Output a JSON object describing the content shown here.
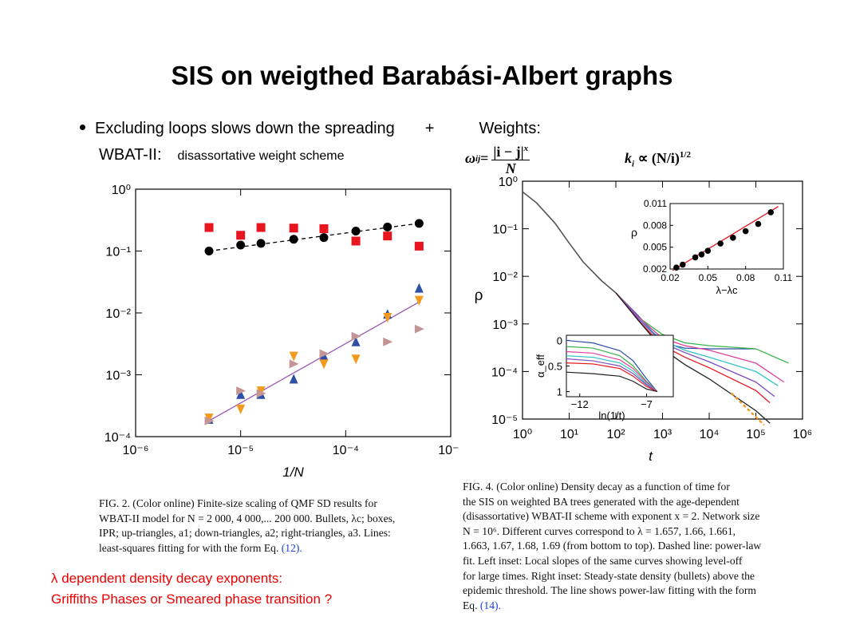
{
  "slide": {
    "title": "SIS on weigthed Barabási-Albert graphs",
    "bullet_part1": "Excluding loops slows down the spreading",
    "bullet_plus": "+",
    "bullet_weights": "Weights:",
    "wbat_label": "WBAT-II:",
    "wbat_desc": "disassortative weight scheme",
    "formula_lhs": "ω",
    "formula_lhs_sub": "ij",
    "formula_eq": " = ",
    "formula_num": "|i − j|",
    "formula_num_sup": "x",
    "formula_den": "N",
    "formula2_lhs": "k",
    "formula2_sub": "i",
    "formula2_rest": " ∝ (N/i)",
    "formula2_sup": "1/2",
    "remark_line1": "λ dependent density  decay exponents:",
    "remark_line2": "Griffiths Phases  or Smeared phase transition ?"
  },
  "fig2": {
    "caption_lines": [
      "FIG. 2.  (Color online) Finite-size scaling of QMF SD results for",
      "WBAT-II model for N = 2 000, 4 000,... 200 000. Bullets, λc; boxes,",
      "IPR; up-triangles, a1; down-triangles, a2; right-triangles, a3. Lines:",
      "least-squares fitting for with the form Eq."
    ],
    "caption_ref": "(12)."
  },
  "fig4": {
    "caption_lines": [
      "FIG. 4.  (Color online) Density decay as a function of time for",
      "the SIS on weighted BA trees generated with the age-dependent",
      "(disassortative) WBAT-II scheme with exponent x = 2. Network size",
      "N = 10⁶. Different curves correspond to λ = 1.657, 1.66, 1.661,",
      "1.663, 1.67, 1.68, 1.69 (from bottom to top). Dashed line: power-law",
      "fit. Left inset: Local slopes of the same curves showing level-off",
      "for large times. Right inset: Steady-state density (bullets) above the",
      "epidemic threshold. The line shows power-law fitting with the form",
      "Eq."
    ],
    "caption_ref": "(14)."
  },
  "colors": {
    "red": "#e8141e",
    "black": "#000000",
    "blue": "#2e4fa8",
    "orange": "#f39a1c",
    "pink": "#c49595",
    "purple": "#9b59b6",
    "green": "#3cb34a",
    "magenta": "#e0409a",
    "cyan": "#34c1c8",
    "violet": "#7a4fc0",
    "link": "#1a3fd8",
    "remark": "#ee0000"
  },
  "chart_data": [
    {
      "type": "scatter",
      "xlabel": "1/N",
      "ylabel": "",
      "log_x": true,
      "log_y": true,
      "xlim": [
        1e-06,
        0.001
      ],
      "ylim": [
        0.0001,
        1
      ],
      "x_ticks": [
        "10⁻⁶",
        "10⁻⁵",
        "10⁻⁴",
        "10⁻³"
      ],
      "y_ticks": [
        "10⁰",
        "10⁻¹",
        "10⁻²",
        "10⁻³",
        "10⁻⁴"
      ],
      "x_ticks_v": [
        1e-06,
        1e-05,
        0.0001,
        0.001
      ],
      "y_ticks_v": [
        1,
        0.1,
        0.01,
        0.001,
        0.0001
      ],
      "x": [
        5e-06,
        1e-05,
        1.56e-05,
        3.2e-05,
        6.2e-05,
        0.000125,
        0.00025,
        0.0005
      ],
      "series": [
        {
          "marker": "bullet",
          "color": "#000000",
          "values": [
            0.1,
            0.125,
            0.133,
            0.155,
            0.165,
            0.21,
            0.245,
            0.28
          ]
        },
        {
          "marker": "box",
          "color": "#e8141e",
          "values": [
            0.24,
            0.18,
            0.24,
            0.235,
            0.23,
            0.145,
            0.175,
            0.12
          ]
        },
        {
          "marker": "up-triangle",
          "color": "#2e4fa8",
          "values": [
            0.00019,
            0.00048,
            0.00048,
            0.00085,
            0.002,
            0.0034,
            0.0095,
            0.025
          ]
        },
        {
          "marker": "down-triangle",
          "color": "#f39a1c",
          "values": [
            0.0002,
            0.00028,
            0.00055,
            0.002,
            0.0015,
            0.0018,
            0.0085,
            0.016
          ]
        },
        {
          "marker": "right-triangle",
          "color": "#c49595",
          "values": [
            0.00018,
            0.00055,
            0.0005,
            0.0015,
            0.0022,
            0.0042,
            0.0034,
            0.0055
          ]
        }
      ],
      "fit_lines": [
        {
          "color": "#000000",
          "dashed": true,
          "from": [
            5e-06,
            0.1
          ],
          "to": [
            0.0005,
            0.28
          ]
        },
        {
          "color": "#9b59b6",
          "dashed": false,
          "from": [
            5e-06,
            0.00018
          ],
          "to": [
            0.0005,
            0.015
          ]
        }
      ]
    },
    {
      "type": "line",
      "xlabel": "t",
      "ylabel": "ρ",
      "log_x": true,
      "log_y": true,
      "xlim": [
        1,
        1000000
      ],
      "ylim": [
        1e-05,
        1
      ],
      "x_ticks": [
        "10⁰",
        "10¹",
        "10²",
        "10³",
        "10⁴",
        "10⁵",
        "10⁶"
      ],
      "y_ticks": [
        "10⁰",
        "10⁻¹",
        "10⁻²",
        "10⁻³",
        "10⁻⁴",
        "10⁻⁵"
      ],
      "x_ticks_v": [
        1,
        10,
        100,
        1000,
        10000,
        100000,
        1000000
      ],
      "y_ticks_v": [
        1,
        0.1,
        0.01,
        0.001,
        0.0001,
        1e-05
      ],
      "shared_head": {
        "x": [
          1,
          2,
          5,
          10,
          20,
          50,
          100
        ],
        "y": [
          0.6,
          0.35,
          0.13,
          0.05,
          0.02,
          0.008,
          0.0045
        ]
      },
      "series": [
        {
          "lambda": "1.69",
          "color": "#2e4fa8",
          "x": [
            100,
            300,
            1000,
            3000,
            10000,
            100000
          ],
          "y": [
            0.0045,
            0.0015,
            0.0004,
            0.00031,
            0.0003,
            0.0003
          ]
        },
        {
          "lambda": "1.68",
          "color": "#3cb34a",
          "x": [
            100,
            300,
            1000,
            3000,
            10000,
            100000,
            500000
          ],
          "y": [
            0.0045,
            0.0014,
            0.0006,
            0.0004,
            0.00035,
            0.0003,
            0.00015
          ]
        },
        {
          "lambda": "1.67",
          "color": "#e0409a",
          "x": [
            100,
            300,
            1000,
            3000,
            10000,
            100000,
            400000
          ],
          "y": [
            0.0045,
            0.0014,
            0.0005,
            0.00035,
            0.00028,
            0.00015,
            6e-05
          ]
        },
        {
          "lambda": "1.663",
          "color": "#34c1c8",
          "x": [
            100,
            300,
            1000,
            3000,
            10000,
            100000,
            300000
          ],
          "y": [
            0.0045,
            0.0013,
            0.00045,
            0.00028,
            0.0002,
            0.0001,
            5e-05
          ]
        },
        {
          "lambda": "1.661",
          "color": "#7a4fc0",
          "x": [
            100,
            300,
            1000,
            3000,
            10000,
            100000,
            250000
          ],
          "y": [
            0.0045,
            0.0013,
            0.0004,
            0.00025,
            0.00016,
            6e-05,
            3e-05
          ]
        },
        {
          "lambda": "1.66",
          "color": "#e8141e",
          "x": [
            100,
            300,
            1000,
            3000,
            10000,
            100000,
            200000
          ],
          "y": [
            0.0045,
            0.0012,
            0.00035,
            0.0002,
            0.00012,
            4e-05,
            2.2e-05
          ]
        },
        {
          "lambda": "1.657",
          "color": "#222222",
          "x": [
            100,
            300,
            1000,
            3000,
            10000,
            100000,
            200000
          ],
          "y": [
            0.0045,
            0.0012,
            0.0003,
            0.00014,
            7e-05,
            1.5e-05,
            8.2e-06
          ]
        }
      ],
      "dashed_fit": {
        "color": "#f39a1c",
        "x": [
          30000,
          150000
        ],
        "y": [
          3.5e-05,
          7.5e-06
        ]
      },
      "insets": [
        {
          "name": "right-inset",
          "xlabel": "λ−λc",
          "ylabel": "ρ",
          "x_ticks": [
            "0.02",
            "0.05",
            "0.08",
            "0.11"
          ],
          "y_ticks": [
            "0.011",
            "0.008",
            "0.005",
            "0.002"
          ],
          "xlim": [
            0.02,
            0.11
          ],
          "ylim": [
            0.002,
            0.011
          ],
          "x_ticks_v": [
            0.02,
            0.05,
            0.08,
            0.11
          ],
          "y_ticks_v": [
            0.011,
            0.008,
            0.005,
            0.002
          ],
          "points": {
            "x": [
              0.025,
              0.03,
              0.04,
              0.045,
              0.05,
              0.06,
              0.07,
              0.08,
              0.09,
              0.1
            ],
            "y": [
              0.0022,
              0.0026,
              0.0036,
              0.004,
              0.0045,
              0.0055,
              0.0063,
              0.0072,
              0.0082,
              0.0098
            ]
          },
          "fit": {
            "x": [
              0.022,
              0.106
            ],
            "y": [
              0.0018,
              0.0106
            ]
          }
        },
        {
          "name": "left-inset",
          "xlabel": "ln(1/t)",
          "ylabel": "α_eff",
          "x_ticks": [
            "−12",
            "−7"
          ],
          "y_ticks": [
            "0",
            "0.5",
            "1"
          ],
          "xlim": [
            -13,
            -5
          ],
          "ylim": [
            1.1,
            -0.1
          ],
          "x_ticks_v": [
            -12,
            -7
          ],
          "y_ticks_v": [
            0,
            0.5,
            1
          ],
          "curves": [
            {
              "color": "#2e4fa8",
              "x": [
                -13,
                -11,
                -9,
                -8,
                -7,
                -6.2
              ],
              "y": [
                0.0,
                0.05,
                0.2,
                0.4,
                0.75,
                1.0
              ]
            },
            {
              "color": "#3cb34a",
              "x": [
                -13,
                -11,
                -9,
                -8,
                -7,
                -6.2
              ],
              "y": [
                0.12,
                0.15,
                0.3,
                0.5,
                0.8,
                1.0
              ]
            },
            {
              "color": "#e0409a",
              "x": [
                -13,
                -11,
                -9,
                -8,
                -7,
                -6.2
              ],
              "y": [
                0.22,
                0.25,
                0.38,
                0.55,
                0.82,
                1.0
              ]
            },
            {
              "color": "#34c1c8",
              "x": [
                -13,
                -11,
                -9,
                -8,
                -7,
                -6.2
              ],
              "y": [
                0.3,
                0.33,
                0.44,
                0.6,
                0.85,
                1.0
              ]
            },
            {
              "color": "#7a4fc0",
              "x": [
                -13,
                -11,
                -9,
                -8,
                -7,
                -6.2
              ],
              "y": [
                0.36,
                0.4,
                0.5,
                0.65,
                0.87,
                1.0
              ]
            },
            {
              "color": "#e8141e",
              "x": [
                -13,
                -11,
                -9,
                -8,
                -7,
                -6.2
              ],
              "y": [
                0.44,
                0.46,
                0.55,
                0.7,
                0.9,
                1.0
              ]
            },
            {
              "color": "#222222",
              "x": [
                -13,
                -11,
                -9,
                -8,
                -7,
                -6.2
              ],
              "y": [
                0.62,
                0.65,
                0.7,
                0.8,
                0.95,
                1.0
              ]
            }
          ]
        }
      ]
    }
  ]
}
